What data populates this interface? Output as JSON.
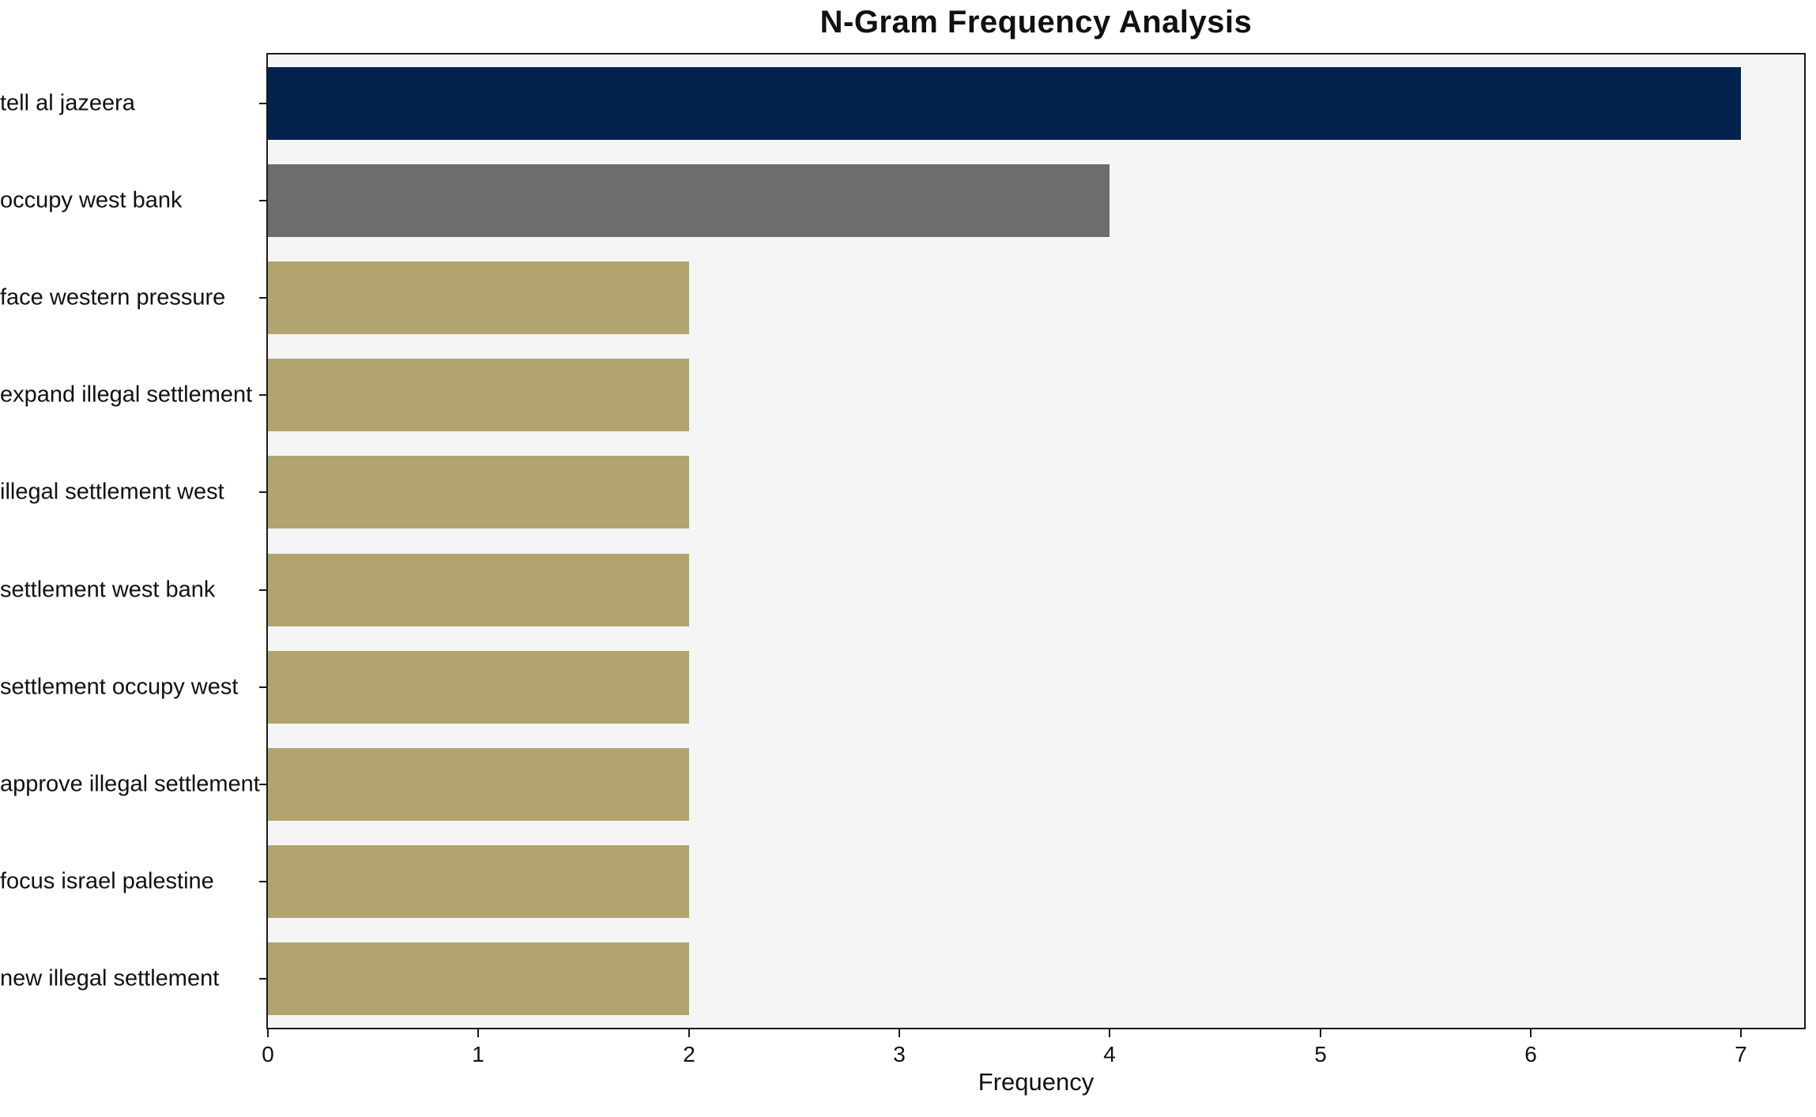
{
  "chart_data": {
    "type": "bar",
    "orientation": "horizontal",
    "title": "N-Gram Frequency Analysis",
    "xlabel": "Frequency",
    "ylabel": "",
    "categories": [
      "tell al jazeera",
      "occupy west bank",
      "face western pressure",
      "expand illegal settlement",
      "illegal settlement west",
      "settlement west bank",
      "settlement occupy west",
      "approve illegal settlement",
      "focus israel palestine",
      "new illegal settlement"
    ],
    "values": [
      7,
      4,
      2,
      2,
      2,
      2,
      2,
      2,
      2,
      2
    ],
    "bar_colors": [
      "#01234e",
      "#6d6d70",
      "#b1a46f",
      "#b1a46f",
      "#b1a46f",
      "#b1a46f",
      "#b1a46f",
      "#b1a46f",
      "#b1a46f",
      "#b1a46f"
    ],
    "xticks": [
      0,
      1,
      2,
      3,
      4,
      5,
      6,
      7
    ],
    "xlim": [
      0,
      7.3
    ],
    "grid": false,
    "legend": null,
    "plot_background": "#f5f5f6",
    "figure_background": "#ffffff",
    "spine_color": "#1a1a1a",
    "text_color": "#111111"
  }
}
